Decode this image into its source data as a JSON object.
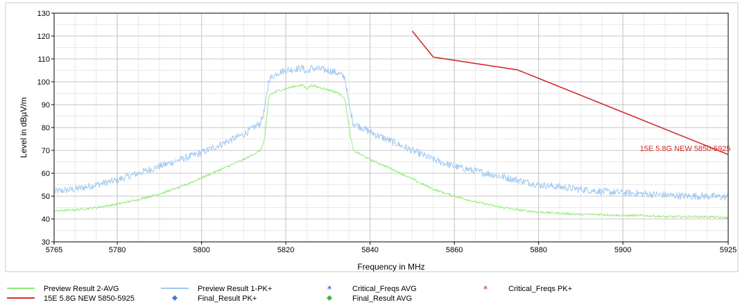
{
  "chart_data": {
    "type": "line",
    "xlabel": "Frequency in MHz",
    "ylabel": "Level in dBµV/m",
    "xlim": [
      5765,
      5925
    ],
    "ylim": [
      30,
      130
    ],
    "x_ticks": [
      5765,
      5780,
      5800,
      5820,
      5840,
      5860,
      5880,
      5900,
      5925
    ],
    "y_ticks": [
      30,
      40,
      50,
      60,
      70,
      80,
      90,
      100,
      110,
      120,
      130
    ],
    "x_minor_step": 5,
    "y_minor_step": 5,
    "grid": true,
    "limit_label": "15E 5.8G NEW 5850-5925",
    "series": [
      {
        "name": "Preview Result 1-PK+",
        "color": "#9ec8f0",
        "noise": 1.6,
        "x": [
          5765,
          5770,
          5775,
          5780,
          5785,
          5790,
          5795,
          5800,
          5805,
          5810,
          5814,
          5815,
          5816,
          5818,
          5820,
          5822,
          5824,
          5825,
          5826,
          5828,
          5830,
          5832,
          5834,
          5835,
          5836,
          5840,
          5845,
          5850,
          5855,
          5860,
          5865,
          5870,
          5875,
          5880,
          5885,
          5890,
          5895,
          5900,
          5905,
          5910,
          5915,
          5920,
          5925
        ],
        "y": [
          52,
          53,
          55,
          57,
          60,
          63,
          66,
          69,
          73,
          77,
          82,
          88,
          101,
          104,
          105,
          105.5,
          106,
          104,
          106,
          105.5,
          105,
          104,
          102,
          90,
          82,
          78,
          74,
          70,
          66,
          63,
          61,
          59,
          57,
          55,
          54,
          53,
          52,
          51.5,
          51,
          50.5,
          50,
          50,
          49.5
        ]
      },
      {
        "name": "Preview Result 2-AVG",
        "color": "#90ec78",
        "noise": 0.5,
        "x": [
          5765,
          5770,
          5775,
          5780,
          5785,
          5790,
          5795,
          5800,
          5805,
          5810,
          5814,
          5815,
          5816,
          5818,
          5820,
          5822,
          5824,
          5825,
          5826,
          5828,
          5830,
          5832,
          5834,
          5835,
          5836,
          5840,
          5845,
          5850,
          5855,
          5860,
          5865,
          5870,
          5875,
          5880,
          5885,
          5890,
          5895,
          5900,
          5905,
          5910,
          5915,
          5920,
          5925
        ],
        "y": [
          43.5,
          44,
          45,
          46.5,
          48.5,
          51,
          54,
          58,
          62,
          66,
          70,
          75,
          94,
          96,
          97,
          98,
          98.5,
          97,
          98.5,
          97.5,
          96.5,
          95.5,
          93,
          80,
          70,
          66,
          62,
          57.5,
          53,
          50,
          47.5,
          45.5,
          44,
          43,
          42.5,
          42,
          42,
          41.5,
          41.5,
          41,
          41,
          41,
          40.5
        ]
      },
      {
        "name": "15E 5.8G NEW 5850-5925",
        "color": "#d42a2a",
        "noise": 0,
        "x": [
          5850,
          5855,
          5875,
          5925
        ],
        "y": [
          122.2,
          110.8,
          105.2,
          68.2
        ]
      }
    ],
    "legend": {
      "placement": "bottom",
      "entries": [
        {
          "label": "Preview Result 2-AVG",
          "kind": "line",
          "color": "#90ec78"
        },
        {
          "label": "Preview Result 1-PK+",
          "kind": "line",
          "color": "#9ec8f0"
        },
        {
          "label": "Critical_Freqs AVG",
          "kind": "star",
          "color": "#1f2fd8"
        },
        {
          "label": "Critical_Freqs PK+",
          "kind": "star",
          "color": "#e02020"
        },
        {
          "label": "15E 5.8G NEW 5850-5925",
          "kind": "line",
          "color": "#d42a2a"
        },
        {
          "label": "Final_Result PK+",
          "kind": "diamond",
          "color": "#3a7ec8"
        },
        {
          "label": "Final_Result AVG",
          "kind": "diamond",
          "color": "#48b038"
        }
      ]
    }
  }
}
